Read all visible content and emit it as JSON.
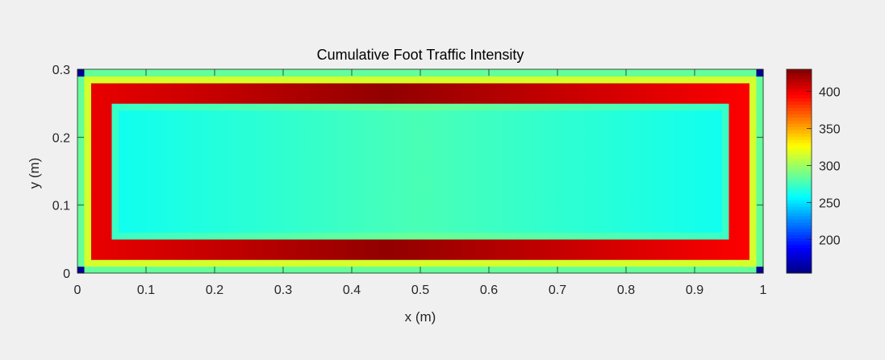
{
  "chart_data": {
    "type": "heatmap",
    "title": "Cumulative Foot Traffic Intensity",
    "xlabel": "x (m)",
    "ylabel": "y (m)",
    "xlim": [
      0,
      1
    ],
    "ylim": [
      0,
      0.3
    ],
    "x_ticks": [
      0,
      0.1,
      0.2,
      0.3,
      0.4,
      0.5,
      0.6,
      0.7,
      0.8,
      0.9,
      1
    ],
    "x_tick_labels": [
      "0",
      "0.1",
      "0.2",
      "0.3",
      "0.4",
      "0.5",
      "0.6",
      "0.7",
      "0.8",
      "0.9",
      "1"
    ],
    "y_ticks": [
      0,
      0.1,
      0.2,
      0.3
    ],
    "y_tick_labels": [
      "0",
      "0.1",
      "0.2",
      "0.3"
    ],
    "colormap": "jet",
    "clim": [
      155,
      430
    ],
    "colorbar_ticks": [
      200,
      250,
      300,
      350,
      400
    ],
    "colorbar_tick_labels": [
      "200",
      "250",
      "300",
      "350",
      "400"
    ],
    "grid": false,
    "field": {
      "description_units": "intensity",
      "outer_edge_value": 270,
      "corner_value": 160,
      "perimeter_band_peak": 425,
      "perimeter_band_low": 395,
      "interior_value_center": 278,
      "interior_value_edge": 262,
      "inner_edge_value": 330,
      "band_outer_x": [
        0.02,
        0.98
      ],
      "band_outer_y": [
        0.02,
        0.28
      ],
      "band_inner_x": [
        0.05,
        0.95
      ],
      "band_inner_y": [
        0.05,
        0.25
      ]
    }
  }
}
